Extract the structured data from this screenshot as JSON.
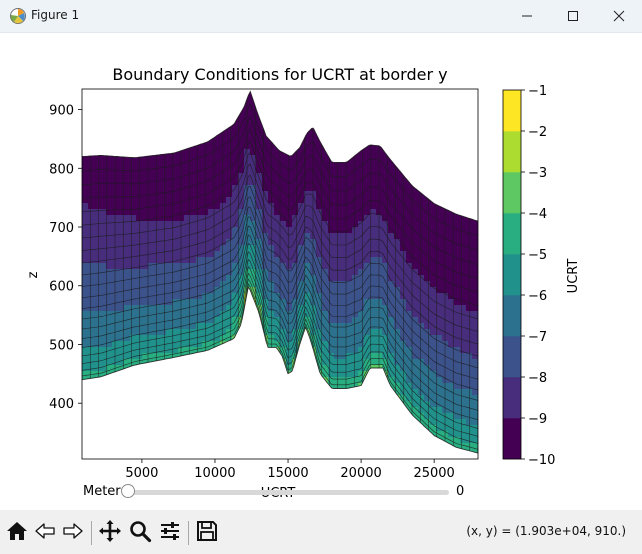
{
  "window": {
    "title": "Figure 1",
    "icons": [
      "matplotlib-icon",
      "minimize-icon",
      "maximize-icon",
      "close-icon"
    ]
  },
  "toolbar": {
    "buttons": [
      "home-icon",
      "back-icon",
      "forward-icon",
      "pan-icon",
      "zoom-icon",
      "configure-subplots-icon",
      "save-icon"
    ],
    "coords": "(x, y) = (1.903e+04, 910.)"
  },
  "slider": {
    "label": "Meter",
    "value": "0",
    "fraction": 0.0
  },
  "chart_data": {
    "type": "heatmap",
    "title": "Boundary Conditions for UCRT at border y",
    "xlabel": "UCRT",
    "ylabel": "z",
    "xlim": [
      900,
      28000
    ],
    "ylim": [
      305,
      935
    ],
    "xticks": [
      5000,
      10000,
      15000,
      20000,
      25000
    ],
    "xtick_labels": [
      "5000",
      "10000",
      "15000",
      "20000",
      "25000"
    ],
    "yticks": [
      400,
      500,
      600,
      700,
      800,
      900
    ],
    "ytick_labels": [
      "400",
      "500",
      "600",
      "700",
      "800",
      "900"
    ],
    "grid": false,
    "terrain_x": [
      900,
      2200,
      4500,
      7200,
      9500,
      11300,
      11800,
      12300,
      12600,
      13000,
      13600,
      14200,
      14600,
      15000,
      15300,
      15800,
      16200,
      16500,
      16800,
      17200,
      18000,
      19000,
      20000,
      20600,
      21500,
      22000,
      23500,
      25000,
      26500,
      28000
    ],
    "terrain_y": [
      440,
      445,
      465,
      478,
      490,
      510,
      535,
      600,
      580,
      555,
      495,
      495,
      480,
      450,
      455,
      500,
      530,
      510,
      485,
      450,
      425,
      425,
      430,
      460,
      460,
      430,
      380,
      345,
      325,
      315
    ],
    "top_x": [
      900,
      2200,
      4500,
      7200,
      9500,
      11300,
      12000,
      12400,
      12900,
      13500,
      14400,
      15200,
      15800,
      16300,
      16700,
      17200,
      18000,
      19000,
      20000,
      20600,
      21300,
      22000,
      23500,
      25000,
      26500,
      28000
    ],
    "top_y": [
      820,
      822,
      818,
      826,
      845,
      875,
      905,
      932,
      895,
      855,
      830,
      820,
      835,
      860,
      870,
      845,
      810,
      810,
      830,
      840,
      838,
      815,
      770,
      740,
      722,
      710
    ],
    "n_levels": 21,
    "n_columns": 48,
    "colorbar": {
      "label": "UCRT",
      "levels": [
        -10,
        -9,
        -8,
        -7,
        -6,
        -5,
        -4,
        -3,
        -2,
        -1
      ],
      "tick_labels": [
        "−10",
        "−9",
        "−8",
        "−7",
        "−6",
        "−5",
        "−4",
        "−3",
        "−2",
        "−1"
      ],
      "colors": [
        "#440154",
        "#472d7b",
        "#3b528b",
        "#2c728e",
        "#21918c",
        "#28ae80",
        "#5ec962",
        "#addc30",
        "#fde725"
      ]
    }
  }
}
